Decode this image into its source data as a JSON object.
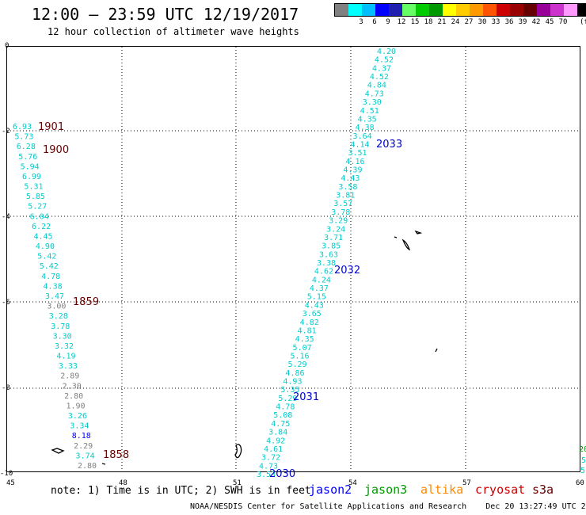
{
  "header": {
    "title": "12:00 – 23:59 UTC 12/19/2017",
    "subtitle": "12 hour collection of altimeter wave heights"
  },
  "legend": {
    "colors": [
      "#808080",
      "#00ffff",
      "#00bfff",
      "#0000ff",
      "#2020b0",
      "#66ff66",
      "#00cc00",
      "#009900",
      "#ffff00",
      "#ffcc00",
      "#ff9900",
      "#ff5500",
      "#cc0000",
      "#990000",
      "#660000",
      "#990099",
      "#cc33cc",
      "#ff99ff",
      "#000000"
    ],
    "labels": [
      "3",
      "6",
      "9",
      "12",
      "15",
      "18",
      "21",
      "24",
      "27",
      "30",
      "33",
      "36",
      "39",
      "42",
      "45",
      "70"
    ],
    "unit": "(ft)"
  },
  "axes": {
    "x_ticks": [
      "45",
      "48",
      "51",
      "54",
      "57",
      "60"
    ],
    "y_ticks": [
      "0",
      "-2",
      "-4",
      "-6",
      "-8",
      "-10"
    ]
  },
  "passes": [
    {
      "id": "jason2-2030",
      "satellite": "jason2",
      "label": "2030",
      "label_color": "#0000cc"
    },
    {
      "id": "jason2-2031",
      "satellite": "jason2",
      "label": "2031",
      "label_color": "#0000cc"
    },
    {
      "id": "jason2-2032",
      "satellite": "jason2",
      "label": "2032",
      "label_color": "#0000cc"
    },
    {
      "id": "jason2-2033",
      "satellite": "jason2",
      "label": "2033",
      "label_color": "#0000cc"
    },
    {
      "id": "cryosat-1858",
      "satellite": "cryosat",
      "label": "1858",
      "label_color": "#660000"
    },
    {
      "id": "cryosat-1859",
      "satellite": "cryosat",
      "label": "1859",
      "label_color": "#660000"
    },
    {
      "id": "cryosat-1900",
      "satellite": "cryosat",
      "label": "1900",
      "label_color": "#660000"
    },
    {
      "id": "cryosat-1901",
      "satellite": "cryosat",
      "label": "1901",
      "label_color": "#660000"
    }
  ],
  "track_east": {
    "values": [
      "4.20",
      "4.52",
      "4.37",
      "4.52",
      "4.84",
      "4.73",
      "3.30",
      "4.51",
      "4.35",
      "4.38",
      "3.64",
      "4.14",
      "3.51",
      "4.16",
      "4.39",
      "4.43",
      "3.58",
      "3.81",
      "3.57",
      "3.78",
      "3.29",
      "3.24",
      "3.71",
      "3.85",
      "3.63",
      "3.38",
      "4.62",
      "4.24",
      "4.37",
      "5.15",
      "4.43",
      "3.65",
      "4.82",
      "4.81",
      "4.35",
      "5.07",
      "5.16",
      "5.29",
      "4.86",
      "4.93",
      "5.35",
      "5.29",
      "4.78",
      "5.08",
      "4.75",
      "3.84",
      "4.92",
      "4.61",
      "3.72",
      "4.73",
      "3.53"
    ],
    "colors": [
      "#00cccc"
    ]
  },
  "track_west": {
    "values": [
      "6.93",
      "5.73",
      "6.28",
      "5.76",
      "5.94",
      "6.99",
      "5.31",
      "5.85",
      "5.27",
      "6.04",
      "6.22",
      "4.45",
      "4.90",
      "5.42",
      "5.42",
      "4.78",
      "4.38",
      "3.47",
      "3.00",
      "3.28",
      "3.78",
      "3.30",
      "3.32",
      "4.19",
      "3.33",
      "2.89",
      "2.30",
      "2.80",
      "1.90",
      "3.26",
      "3.34",
      "8.18",
      "2.29",
      "3.74",
      "2.80"
    ],
    "colors": [
      "#00cccc",
      "#00cccc",
      "#00cccc",
      "#00cccc",
      "#00cccc",
      "#00cccc",
      "#00cccc",
      "#00cccc",
      "#00cccc",
      "#00cccc",
      "#00cccc",
      "#00cccc",
      "#00cccc",
      "#00cccc",
      "#00cccc",
      "#00cccc",
      "#00cccc",
      "#00cccc",
      "#808080",
      "#00cccc",
      "#00cccc",
      "#00cccc",
      "#00cccc",
      "#00cccc",
      "#00cccc",
      "#808080",
      "#808080",
      "#808080",
      "#808080",
      "#00cccc",
      "#00cccc",
      "#0000ff",
      "#808080",
      "#00cccc",
      "#808080"
    ]
  },
  "edge_fragments": [
    "20",
    "5",
    "5"
  ],
  "note": "note: 1) Time is in UTC; 2) SWH is in feet",
  "satellites": [
    {
      "name": "jason2",
      "color": "#0000ff"
    },
    {
      "name": "jason3",
      "color": "#009900"
    },
    {
      "name": "altika",
      "color": "#ff8800"
    },
    {
      "name": "cryosat",
      "color": "#cc0000"
    },
    {
      "name": "s3a",
      "color": "#660000"
    }
  ],
  "credit": "NOAA/NESDIS Center for Satellite Applications and Research    Dec 20 13:27:49 UTC 2017"
}
